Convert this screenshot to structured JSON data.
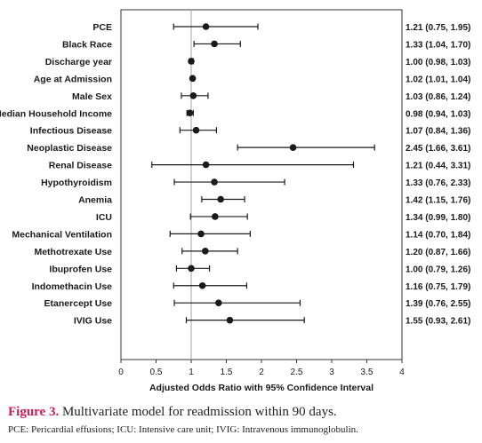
{
  "chart_data": {
    "type": "forest",
    "xlabel": "Adjusted Odds Ratio with 95% Confidence Interval",
    "xlim": [
      0,
      4
    ],
    "xticks": [
      0,
      0.5,
      1,
      1.5,
      2,
      2.5,
      3,
      3.5,
      4
    ],
    "reference_line": 1,
    "rows": [
      {
        "label": "PCE",
        "or": 1.21,
        "lo": 0.75,
        "hi": 1.95,
        "text": "1.21 (0.75, 1.95)"
      },
      {
        "label": "Black Race",
        "or": 1.33,
        "lo": 1.04,
        "hi": 1.7,
        "text": "1.33 (1.04, 1.70)"
      },
      {
        "label": "Discharge year",
        "or": 1.0,
        "lo": 0.98,
        "hi": 1.03,
        "text": "1.00 (0.98, 1.03)"
      },
      {
        "label": "Age at Admission",
        "or": 1.02,
        "lo": 1.01,
        "hi": 1.04,
        "text": "1.02 (1.01, 1.04)"
      },
      {
        "label": "Male Sex",
        "or": 1.03,
        "lo": 0.86,
        "hi": 1.24,
        "text": "1.03 (0.86, 1.24)"
      },
      {
        "label": "Median Household Income",
        "or": 0.98,
        "lo": 0.94,
        "hi": 1.03,
        "text": "0.98 (0.94, 1.03)"
      },
      {
        "label": "Infectious Disease",
        "or": 1.07,
        "lo": 0.84,
        "hi": 1.36,
        "text": "1.07 (0.84, 1.36)"
      },
      {
        "label": "Neoplastic Disease",
        "or": 2.45,
        "lo": 1.66,
        "hi": 3.61,
        "text": "2.45 (1.66, 3.61)"
      },
      {
        "label": "Renal Disease",
        "or": 1.21,
        "lo": 0.44,
        "hi": 3.31,
        "text": "1.21 (0.44, 3.31)"
      },
      {
        "label": "Hypothyroidism",
        "or": 1.33,
        "lo": 0.76,
        "hi": 2.33,
        "text": "1.33 (0.76, 2.33)"
      },
      {
        "label": "Anemia",
        "or": 1.42,
        "lo": 1.15,
        "hi": 1.76,
        "text": "1.42 (1.15, 1.76)"
      },
      {
        "label": "ICU",
        "or": 1.34,
        "lo": 0.99,
        "hi": 1.8,
        "text": "1.34 (0.99, 1.80)"
      },
      {
        "label": "Mechanical Ventilation",
        "or": 1.14,
        "lo": 0.7,
        "hi": 1.84,
        "text": "1.14 (0.70, 1.84)"
      },
      {
        "label": "Methotrexate Use",
        "or": 1.2,
        "lo": 0.87,
        "hi": 1.66,
        "text": "1.20 (0.87, 1.66)"
      },
      {
        "label": "Ibuprofen Use",
        "or": 1.0,
        "lo": 0.79,
        "hi": 1.26,
        "text": "1.00 (0.79, 1.26)"
      },
      {
        "label": "Indomethacin Use",
        "or": 1.16,
        "lo": 0.75,
        "hi": 1.79,
        "text": "1.16 (0.75, 1.79)"
      },
      {
        "label": "Etanercept Use",
        "or": 1.39,
        "lo": 0.76,
        "hi": 2.55,
        "text": "1.39 (0.76, 2.55)"
      },
      {
        "label": "IVIG Use",
        "or": 1.55,
        "lo": 0.93,
        "hi": 2.61,
        "text": "1.55 (0.93, 2.61)"
      }
    ]
  },
  "caption": {
    "figure_number": "Figure 3.",
    "text": "Multivariate model for readmission within 90 days."
  },
  "footnote": "PCE: Pericardial effusions; ICU: Intensive care unit; IVIG: Intravenous immunoglobulin.",
  "colors": {
    "figure_number": "#c8205a",
    "ink": "#1a1a1a",
    "reference_line": "#b0b0b0"
  }
}
